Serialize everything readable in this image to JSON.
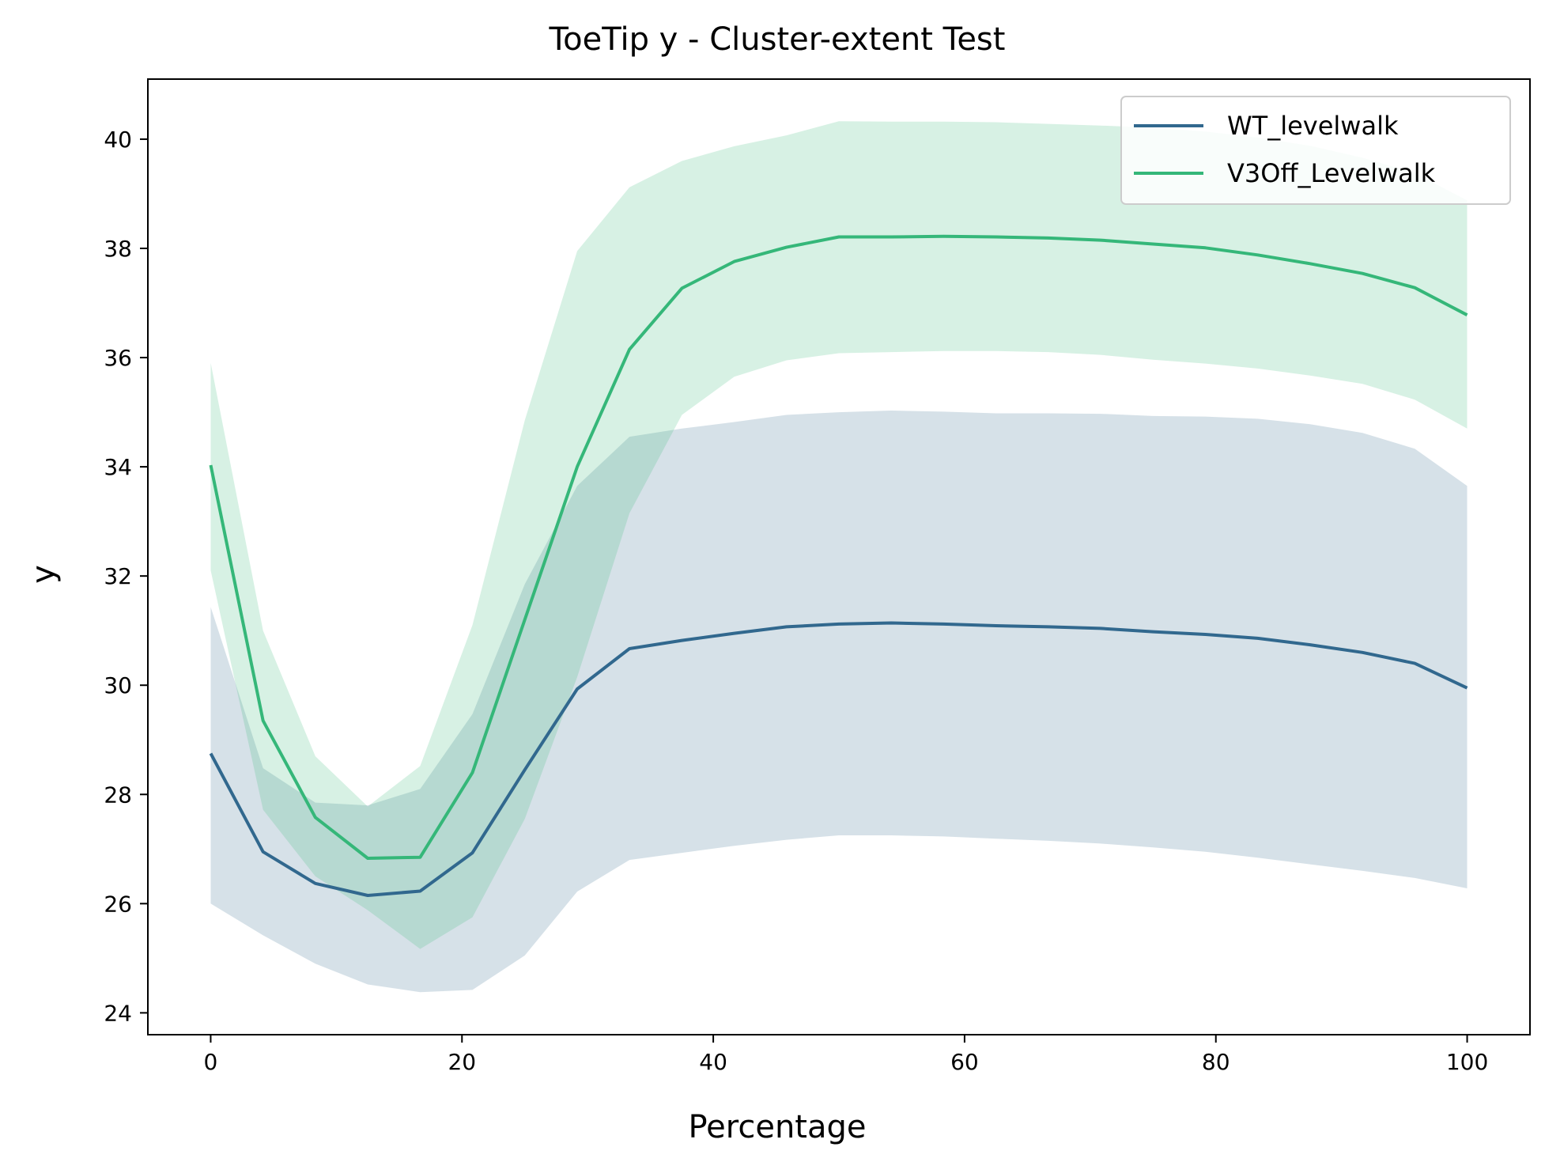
{
  "chart_data": {
    "type": "line",
    "title": "ToeTip y - Cluster-extent Test",
    "xlabel": "Percentage",
    "ylabel": "y",
    "xlim": [
      -5,
      105
    ],
    "ylim": [
      23.6,
      41.1
    ],
    "xticks": [
      0,
      20,
      40,
      60,
      80,
      100
    ],
    "yticks": [
      24,
      26,
      28,
      30,
      32,
      34,
      36,
      38,
      40
    ],
    "grid": false,
    "legend_position": "top-right",
    "x": [
      0,
      4.17,
      8.33,
      12.5,
      16.67,
      20.83,
      25,
      29.17,
      33.33,
      37.5,
      41.67,
      45.83,
      50,
      54.17,
      58.33,
      62.5,
      66.67,
      70.83,
      75,
      79.17,
      83.33,
      87.5,
      91.67,
      95.83,
      100
    ],
    "series": [
      {
        "name": "WT_levelwalk",
        "color": "#31688e",
        "band_color": "#31688e",
        "band_opacity": 0.2,
        "values": [
          28.75,
          26.95,
          26.37,
          26.15,
          26.23,
          26.93,
          28.45,
          29.93,
          30.67,
          30.82,
          30.95,
          31.07,
          31.12,
          31.14,
          31.12,
          31.09,
          31.07,
          31.04,
          30.98,
          30.93,
          30.86,
          30.74,
          30.6,
          30.4,
          29.95
        ],
        "lower": [
          26.0,
          25.42,
          24.9,
          24.52,
          24.38,
          24.42,
          25.05,
          26.22,
          26.8,
          26.93,
          27.06,
          27.17,
          27.25,
          27.25,
          27.23,
          27.19,
          27.15,
          27.1,
          27.03,
          26.95,
          26.84,
          26.72,
          26.6,
          26.47,
          26.28
        ],
        "upper": [
          31.43,
          28.48,
          27.85,
          27.8,
          28.1,
          29.47,
          31.85,
          33.65,
          34.55,
          34.7,
          34.82,
          34.95,
          35.0,
          35.03,
          35.01,
          34.98,
          34.98,
          34.97,
          34.93,
          34.92,
          34.88,
          34.78,
          34.62,
          34.33,
          33.65
        ]
      },
      {
        "name": "V3Off_Levelwalk",
        "color": "#35b779",
        "band_color": "#35b779",
        "band_opacity": 0.2,
        "values": [
          34.03,
          29.35,
          27.58,
          26.83,
          26.85,
          28.4,
          31.2,
          34.0,
          36.15,
          37.27,
          37.76,
          38.02,
          38.21,
          38.21,
          38.22,
          38.21,
          38.19,
          38.15,
          38.08,
          38.01,
          37.88,
          37.72,
          37.54,
          37.28,
          36.78
        ],
        "lower": [
          32.1,
          27.72,
          26.5,
          25.88,
          25.17,
          25.75,
          27.55,
          30.15,
          33.15,
          34.95,
          35.65,
          35.95,
          36.08,
          36.1,
          36.12,
          36.12,
          36.1,
          36.05,
          35.96,
          35.89,
          35.8,
          35.67,
          35.52,
          35.23,
          34.7
        ],
        "upper": [
          35.9,
          31.0,
          28.7,
          27.78,
          28.52,
          31.1,
          34.85,
          37.95,
          39.12,
          39.6,
          39.87,
          40.07,
          40.33,
          40.32,
          40.32,
          40.31,
          40.28,
          40.25,
          40.21,
          40.14,
          40.03,
          39.88,
          39.66,
          39.38,
          38.88
        ]
      }
    ]
  }
}
